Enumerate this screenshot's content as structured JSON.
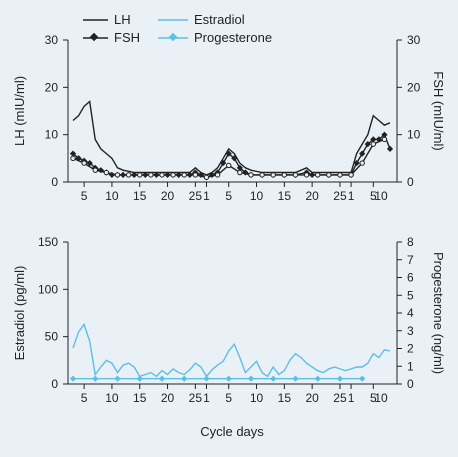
{
  "colors": {
    "background": "#eaf1f6",
    "axis": "#222222",
    "LH": "#222222",
    "FSH": "#222222",
    "Estradiol": "#5bbfe6",
    "Progesterone": "#5bbfe6"
  },
  "chart_data": [
    {
      "type": "line",
      "legend_position": "top-left",
      "grid": false,
      "xlim": [
        3,
        60
      ],
      "ylim": [
        0,
        30
      ],
      "y2lim": [
        0,
        30
      ],
      "yticks": [
        0,
        10,
        20,
        30
      ],
      "y2ticks": [
        0,
        10,
        20,
        30
      ],
      "ylabel": "LH (mIU/ml)",
      "y2label": "FSH (mIU/ml)",
      "xticks": [
        {
          "x": 5,
          "label": "5"
        },
        {
          "x": 10,
          "label": "10"
        },
        {
          "x": 15,
          "label": "15"
        },
        {
          "x": 20,
          "label": "20"
        },
        {
          "x": 25,
          "label": "25"
        },
        {
          "x": 27,
          "label": "1"
        },
        {
          "x": 31,
          "label": "5"
        },
        {
          "x": 36,
          "label": "10"
        },
        {
          "x": 41,
          "label": "15"
        },
        {
          "x": 46,
          "label": "20"
        },
        {
          "x": 51,
          "label": "25"
        },
        {
          "x": 53,
          "label": "1"
        },
        {
          "x": 57,
          "label": "5"
        },
        {
          "x": 62,
          "label": "10"
        }
      ],
      "series": [
        {
          "name": "LH",
          "marker": "none",
          "x": [
            3,
            4,
            5,
            6,
            7,
            8,
            9,
            10,
            11,
            12,
            14,
            16,
            18,
            20,
            22,
            24,
            25,
            26,
            27,
            28,
            29,
            30,
            31,
            32,
            33,
            34,
            35,
            37,
            39,
            41,
            43,
            45,
            46,
            47,
            49,
            51,
            53,
            54,
            55,
            56,
            57,
            58,
            59,
            60
          ],
          "y": [
            13,
            14,
            16,
            17,
            9,
            7,
            6,
            5,
            3,
            2.5,
            2,
            2,
            2,
            2,
            2,
            2,
            3,
            2,
            1.5,
            2,
            3,
            5,
            7,
            6,
            4,
            3,
            2.5,
            2,
            2,
            2,
            2,
            3,
            2,
            2,
            2,
            2,
            2,
            6,
            8,
            10,
            14,
            13,
            12,
            12.5
          ]
        },
        {
          "name": "FSH",
          "marker": "diamond",
          "x": [
            3,
            4,
            5,
            6,
            7,
            8,
            9,
            10,
            11,
            12,
            14,
            16,
            18,
            20,
            22,
            24,
            25,
            26,
            27,
            28,
            29,
            30,
            31,
            32,
            33,
            34,
            35,
            37,
            39,
            41,
            43,
            45,
            46,
            47,
            49,
            51,
            53,
            54,
            55,
            56,
            57,
            58,
            59,
            60
          ],
          "y": [
            6,
            5,
            4.5,
            4,
            3,
            2.5,
            2,
            1.5,
            1.5,
            1.5,
            1.5,
            1.5,
            1.5,
            1.5,
            1.5,
            1.5,
            2,
            1.5,
            1,
            1.5,
            2,
            4,
            6,
            5,
            3,
            2,
            1.5,
            1.5,
            1.5,
            1.5,
            1.5,
            2,
            1.5,
            1.5,
            1.5,
            1.5,
            1.5,
            4,
            6,
            8,
            9,
            9,
            10,
            7
          ]
        },
        {
          "name": "",
          "marker": "circle-open",
          "x": [
            3,
            5,
            7,
            9,
            11,
            13,
            15,
            17,
            19,
            21,
            23,
            25,
            27,
            29,
            31,
            33,
            35,
            37,
            39,
            41,
            43,
            45,
            47,
            49,
            51,
            53,
            55,
            57,
            59
          ],
          "y": [
            5,
            4,
            2.5,
            2,
            1.5,
            1.5,
            1.5,
            1.5,
            1.5,
            1.5,
            1.5,
            1.5,
            1,
            1.5,
            3.5,
            2,
            1.5,
            1.5,
            1.5,
            1.5,
            1.5,
            1.5,
            1.5,
            1.5,
            1.5,
            1.5,
            4,
            8,
            9
          ]
        }
      ]
    },
    {
      "type": "line",
      "legend_position": "none",
      "grid": false,
      "xlim": [
        3,
        60
      ],
      "ylim": [
        0,
        150
      ],
      "y2lim": [
        0,
        8
      ],
      "yticks": [
        0,
        50,
        100,
        150
      ],
      "y2ticks": [
        0,
        1,
        2,
        3,
        4,
        5,
        6,
        7,
        8
      ],
      "ylabel": "Estradiol (pg/ml)",
      "y2label": "Progesterone (ng/ml)",
      "xlabel": "Cycle days",
      "xticks": [
        {
          "x": 5,
          "label": "5"
        },
        {
          "x": 10,
          "label": "10"
        },
        {
          "x": 15,
          "label": "15"
        },
        {
          "x": 20,
          "label": "20"
        },
        {
          "x": 25,
          "label": "25"
        },
        {
          "x": 27,
          "label": "1"
        },
        {
          "x": 31,
          "label": "5"
        },
        {
          "x": 36,
          "label": "10"
        },
        {
          "x": 41,
          "label": "15"
        },
        {
          "x": 46,
          "label": "20"
        },
        {
          "x": 51,
          "label": "25"
        },
        {
          "x": 53,
          "label": "1"
        },
        {
          "x": 57,
          "label": "5"
        },
        {
          "x": 62,
          "label": "10"
        }
      ],
      "series": [
        {
          "name": "Estradiol",
          "axis": "left",
          "marker": "none",
          "x": [
            3,
            4,
            5,
            6,
            7,
            8,
            9,
            10,
            11,
            12,
            13,
            14,
            15,
            16,
            17,
            18,
            19,
            20,
            21,
            22,
            23,
            24,
            25,
            26,
            27,
            28,
            29,
            30,
            31,
            32,
            33,
            34,
            35,
            36,
            37,
            38,
            39,
            40,
            41,
            42,
            43,
            44,
            45,
            46,
            47,
            48,
            49,
            50,
            51,
            52,
            53,
            54,
            55,
            56,
            57,
            58,
            59,
            60
          ],
          "y": [
            38,
            55,
            63,
            45,
            10,
            18,
            25,
            22,
            12,
            20,
            22,
            18,
            8,
            10,
            12,
            8,
            14,
            10,
            16,
            12,
            10,
            15,
            22,
            18,
            8,
            15,
            20,
            24,
            35,
            42,
            28,
            12,
            18,
            24,
            12,
            8,
            18,
            10,
            14,
            25,
            32,
            28,
            22,
            18,
            14,
            12,
            16,
            18,
            16,
            14,
            16,
            18,
            18,
            22,
            32,
            28,
            36,
            35
          ]
        },
        {
          "name": "Progesterone",
          "axis": "right",
          "marker": "diamond",
          "x": [
            3,
            7,
            11,
            15,
            19,
            23,
            27,
            31,
            35,
            39,
            43,
            47,
            51,
            55
          ],
          "y": [
            0.3,
            0.3,
            0.3,
            0.3,
            0.3,
            0.3,
            0.3,
            0.3,
            0.3,
            0.3,
            0.3,
            0.3,
            0.3,
            0.3
          ]
        }
      ]
    }
  ]
}
